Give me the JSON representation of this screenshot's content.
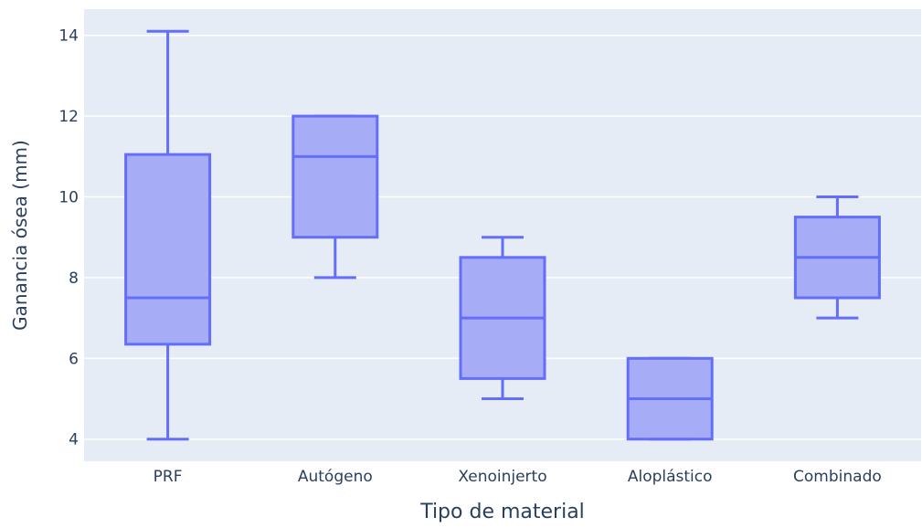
{
  "chart_data": {
    "type": "box",
    "title": "",
    "xlabel": "Tipo de material",
    "ylabel": "Ganancia ósea (mm)",
    "ylim": [
      3.45,
      14.65
    ],
    "yticks": [
      4,
      6,
      8,
      10,
      12,
      14
    ],
    "grid": true,
    "legend": "none",
    "categories": [
      "PRF",
      "Autógeno",
      "Xenoinjerto",
      "Aloplástico",
      "Combinado"
    ],
    "boxes": [
      {
        "category": "PRF",
        "min": 4,
        "q1": 6.35,
        "median": 7.5,
        "q3": 11.05,
        "max": 14.1
      },
      {
        "category": "Autógeno",
        "min": 8,
        "q1": 9,
        "median": 11,
        "q3": 12,
        "max": 12
      },
      {
        "category": "Xenoinjerto",
        "min": 5,
        "q1": 5.5,
        "median": 7,
        "q3": 8.5,
        "max": 9
      },
      {
        "category": "Aloplástico",
        "min": 4,
        "q1": 4,
        "median": 5,
        "q3": 6,
        "max": 6
      },
      {
        "category": "Combinado",
        "min": 7,
        "q1": 7.5,
        "median": 8.5,
        "q3": 9.5,
        "max": 10
      }
    ],
    "colors": {
      "plot_bg": "#e5ecf6",
      "grid": "#ffffff",
      "box_line": "#636efa",
      "box_fill": "#a3a9f5",
      "text": "#2a3f5f"
    }
  }
}
